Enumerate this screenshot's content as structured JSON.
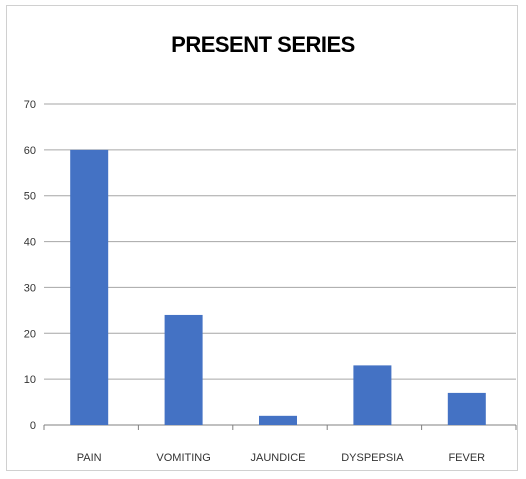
{
  "chart_data": {
    "type": "bar",
    "title": "PRESENT SERIES",
    "xlabel": "",
    "ylabel": "",
    "categories": [
      "PAIN",
      "VOMITING",
      "JAUNDICE",
      "DYSPEPSIA",
      "FEVER"
    ],
    "values": [
      60,
      24,
      2,
      13,
      7
    ],
    "ylim": [
      0,
      70
    ],
    "yticks": [
      "0",
      "10",
      "20",
      "30",
      "40",
      "50",
      "60",
      "70"
    ],
    "grid": true,
    "legend": "none",
    "bar_color": "#4472C4",
    "grid_color": "#a6a6a6"
  }
}
